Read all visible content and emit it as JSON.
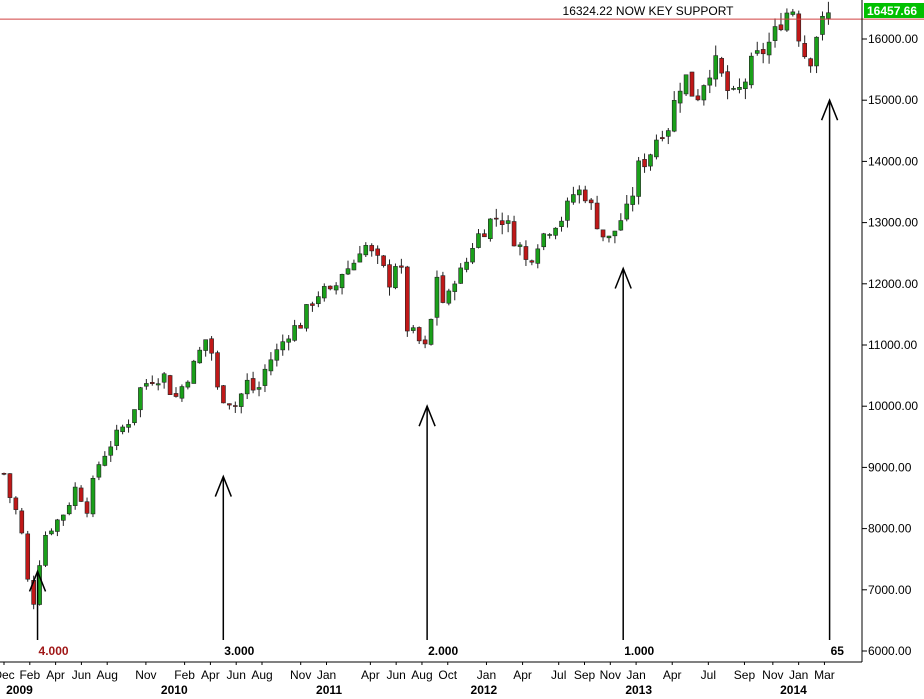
{
  "chart_data": {
    "type": "candlestick",
    "colors": {
      "up": "#1aa01a",
      "down": "#c01818",
      "support_line": "#d04040",
      "last_price_bg": "#00c000",
      "axis": "#000000",
      "arrow": "#000000"
    },
    "ylim": [
      6000,
      16500
    ],
    "y_ticks": [
      6000,
      7000,
      8000,
      9000,
      10000,
      11000,
      12000,
      13000,
      14000,
      15000,
      16000
    ],
    "y_tick_labels": [
      "6000.00",
      "7000.00",
      "8000.00",
      "9000.00",
      "10000.00",
      "11000.00",
      "12000.00",
      "13000.00",
      "14000.00",
      "15000.00",
      "16000.00"
    ],
    "x_month_labels": [
      "Dec",
      "Feb",
      "Apr",
      "Jun",
      "Aug",
      "Nov",
      "Feb",
      "Apr",
      "Jun",
      "Aug",
      "Nov",
      "Jan",
      "Apr",
      "Jun",
      "Aug",
      "Oct",
      "Jan",
      "Apr",
      "Jul",
      "Sep",
      "Nov",
      "Jan",
      "Apr",
      "Jul",
      "Sep",
      "Nov",
      "Jan",
      "Mar"
    ],
    "x_month_positions": [
      0.0,
      1.0,
      2.0,
      3.0,
      4.0,
      5.5,
      7.0,
      8.0,
      9.0,
      10.0,
      11.5,
      12.5,
      14.2,
      15.2,
      16.2,
      17.2,
      18.7,
      20.1,
      21.5,
      22.5,
      23.5,
      24.5,
      25.9,
      27.3,
      28.7,
      29.8,
      30.8,
      31.8
    ],
    "x_year_labels": [
      "2009",
      "2010",
      "2011",
      "2012",
      "2013",
      "2014"
    ],
    "x_year_positions": [
      0.6,
      6.6,
      12.6,
      18.6,
      24.6,
      30.6
    ],
    "series_close": [
      [
        0.0,
        8900
      ],
      [
        0.3,
        8400
      ],
      [
        0.6,
        8200
      ],
      [
        0.9,
        7200
      ],
      [
        1.1,
        6650
      ],
      [
        1.3,
        7300
      ],
      [
        1.6,
        7900
      ],
      [
        2.0,
        8100
      ],
      [
        2.4,
        8300
      ],
      [
        2.8,
        8700
      ],
      [
        3.2,
        8300
      ],
      [
        3.6,
        9000
      ],
      [
        4.0,
        9300
      ],
      [
        4.5,
        9600
      ],
      [
        4.9,
        9800
      ],
      [
        5.3,
        10300
      ],
      [
        5.7,
        10450
      ],
      [
        6.2,
        10500
      ],
      [
        6.6,
        10100
      ],
      [
        7.0,
        10400
      ],
      [
        7.4,
        10700
      ],
      [
        7.8,
        11100
      ],
      [
        8.0,
        11000
      ],
      [
        8.3,
        10200
      ],
      [
        8.7,
        10100
      ],
      [
        9.0,
        10000
      ],
      [
        9.4,
        10400
      ],
      [
        9.8,
        10200
      ],
      [
        10.2,
        10700
      ],
      [
        10.6,
        10900
      ],
      [
        11.0,
        11200
      ],
      [
        11.5,
        11350
      ],
      [
        11.9,
        11700
      ],
      [
        12.3,
        11900
      ],
      [
        12.7,
        11800
      ],
      [
        13.1,
        12200
      ],
      [
        13.5,
        12300
      ],
      [
        13.9,
        12700
      ],
      [
        14.2,
        12500
      ],
      [
        14.6,
        12300
      ],
      [
        15.0,
        12000
      ],
      [
        15.3,
        12600
      ],
      [
        15.6,
        11300
      ],
      [
        16.0,
        11100
      ],
      [
        16.4,
        10900
      ],
      [
        16.8,
        12200
      ],
      [
        17.1,
        11500
      ],
      [
        17.4,
        12100
      ],
      [
        17.8,
        12200
      ],
      [
        18.2,
        12700
      ],
      [
        18.6,
        12900
      ],
      [
        19.0,
        13100
      ],
      [
        19.4,
        13050
      ],
      [
        19.7,
        12800
      ],
      [
        20.0,
        12600
      ],
      [
        20.3,
        12300
      ],
      [
        20.6,
        12650
      ],
      [
        20.9,
        12800
      ],
      [
        21.3,
        13000
      ],
      [
        21.7,
        13100
      ],
      [
        22.1,
        13500
      ],
      [
        22.5,
        13500
      ],
      [
        22.9,
        13100
      ],
      [
        23.2,
        12800
      ],
      [
        23.5,
        12700
      ],
      [
        23.8,
        13000
      ],
      [
        24.2,
        13200
      ],
      [
        24.6,
        13900
      ],
      [
        25.0,
        14100
      ],
      [
        25.4,
        14500
      ],
      [
        25.8,
        14600
      ],
      [
        26.1,
        15200
      ],
      [
        26.4,
        15400
      ],
      [
        26.8,
        15000
      ],
      [
        27.1,
        15300
      ],
      [
        27.5,
        15650
      ],
      [
        27.9,
        15300
      ],
      [
        28.2,
        15000
      ],
      [
        28.6,
        15200
      ],
      [
        29.0,
        15600
      ],
      [
        29.4,
        15800
      ],
      [
        29.8,
        16000
      ],
      [
        30.2,
        16400
      ],
      [
        30.6,
        16500
      ],
      [
        30.9,
        15900
      ],
      [
        31.2,
        15600
      ],
      [
        31.5,
        16100
      ],
      [
        31.8,
        16300
      ],
      [
        32.1,
        16457.66
      ]
    ],
    "support_level": 16324.22,
    "support_label": "16324.22 NOW KEY SUPPORT",
    "last_price_label": "16457.66",
    "cycle_markers": [
      {
        "label": "4.000",
        "x": 1.3,
        "tip_value": 7300,
        "label_color": "#a01818"
      },
      {
        "label": "3.000",
        "x": 8.5,
        "tip_value": 8850,
        "label_color": "#000000"
      },
      {
        "label": "2.000",
        "x": 16.4,
        "tip_value": 10000,
        "label_color": "#000000"
      },
      {
        "label": "1.000",
        "x": 24.0,
        "tip_value": 12250,
        "label_color": "#000000"
      },
      {
        "label": "65",
        "x": 32.0,
        "tip_value": 15000,
        "label_color": "#000000"
      }
    ]
  }
}
